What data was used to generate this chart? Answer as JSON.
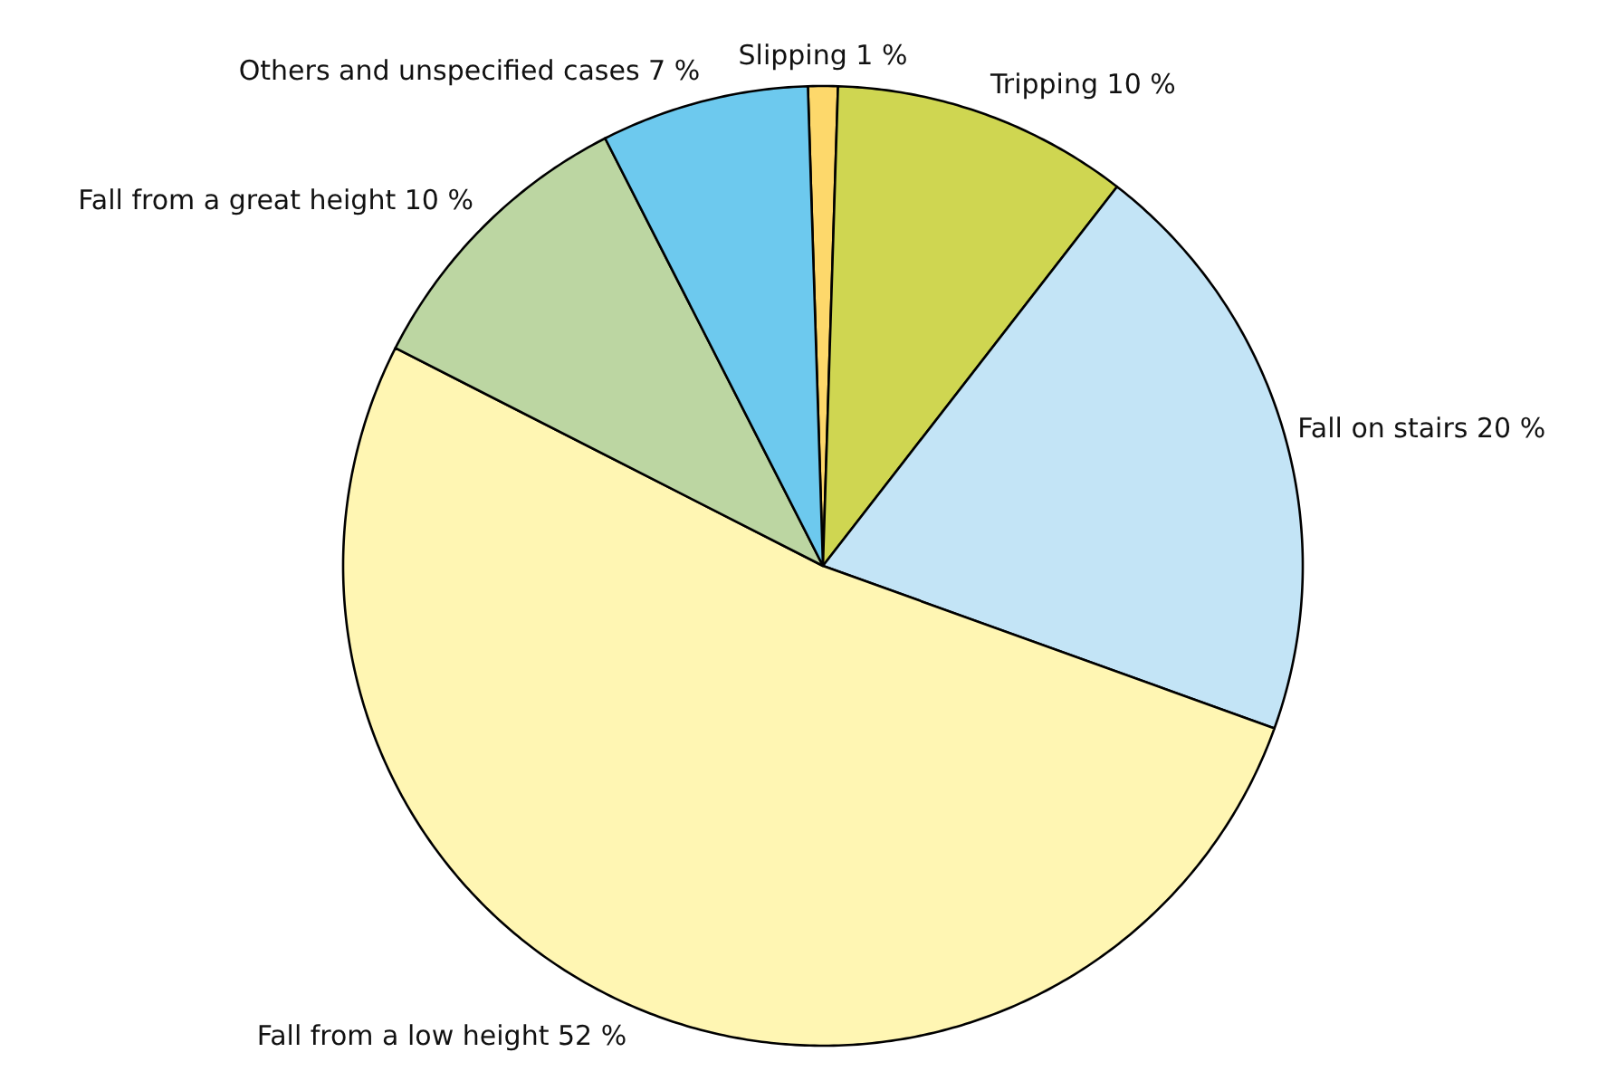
{
  "chart_data": {
    "type": "pie",
    "categories": [
      "Slipping",
      "Tripping",
      "Fall on stairs",
      "Fall from a low height",
      "Fall from a great height",
      "Others and unspecified cases"
    ],
    "values": [
      1,
      10,
      20,
      52,
      10,
      7
    ],
    "value_labels": [
      "1 %",
      "10 %",
      "20 %",
      "52 %",
      "10 %",
      "7 %"
    ],
    "colors": [
      "#fdd86b",
      "#cfd651",
      "#c3e4f6",
      "#fff6b3",
      "#bcd6a2",
      "#6dc9ee"
    ]
  }
}
